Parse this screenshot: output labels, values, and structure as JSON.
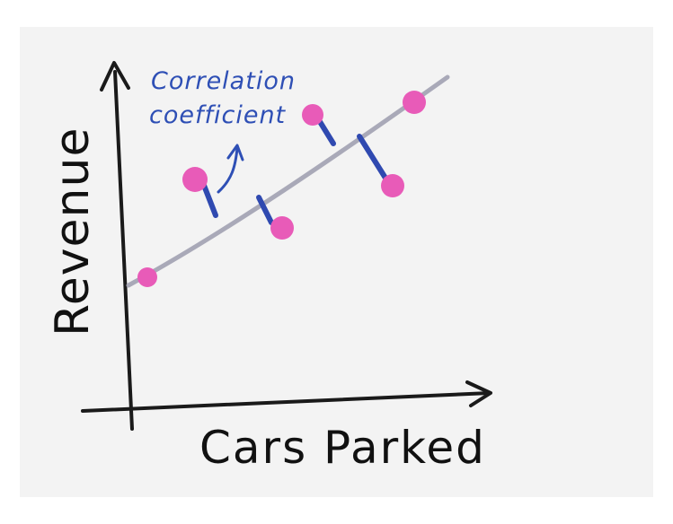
{
  "annotation": {
    "line1": "Correlation",
    "line2": "coefficient"
  },
  "axes": {
    "ylabel": "Revenue",
    "xlabel": "Cars Parked"
  },
  "colors": {
    "point": "#e85bb8",
    "residual": "#2f49b0",
    "trend": "#a9a9b8",
    "axis": "#1a1a1a",
    "annotation": "#2e4fb5"
  },
  "chart_data": {
    "type": "scatter",
    "points": [
      [
        1,
        1
      ],
      [
        2,
        4.6
      ],
      [
        3,
        3.4
      ],
      [
        4,
        5.9
      ],
      [
        5,
        3.9
      ],
      [
        6,
        6.5
      ]
    ],
    "trendline": true,
    "residuals_shown": true
  }
}
